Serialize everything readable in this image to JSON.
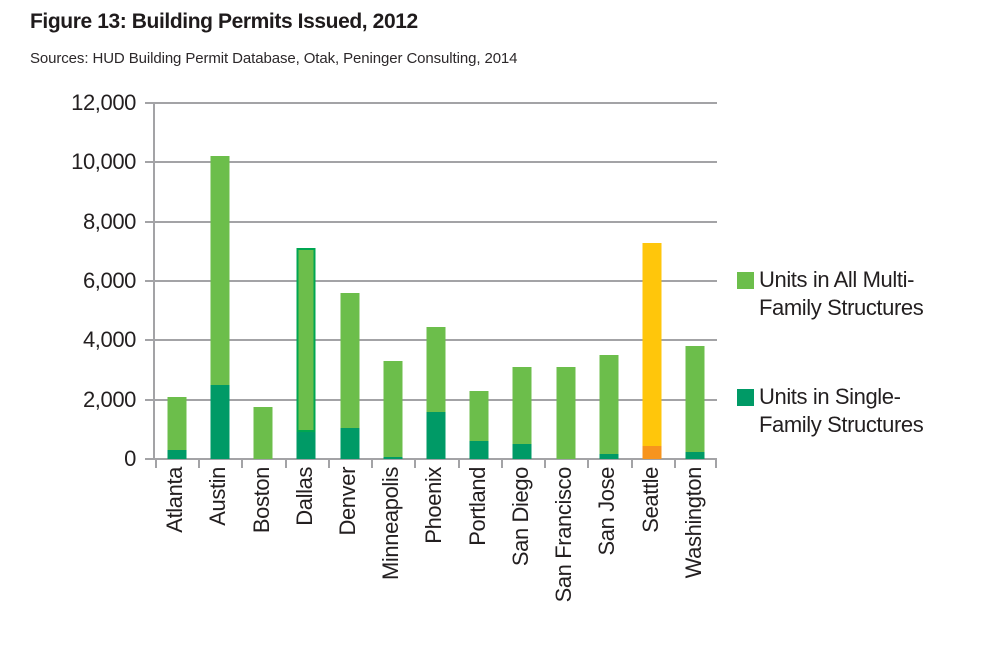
{
  "title": "Figure 13: Building Permits Issued, 2012",
  "source_line": "Sources: HUD Building Permit Database, Otak, Peninger Consulting, 2014",
  "colors": {
    "multi_family": "#6cbe4b",
    "single_family": "#009a66",
    "seattle_multi_highlight": "#ffc60b",
    "seattle_single_highlight": "#f7941e",
    "dallas_outline": "#00a651",
    "grid": "#a3a3a6",
    "text": "#231f20"
  },
  "legend": [
    {
      "lines": [
        "Units in All Multi-",
        "Family Structures"
      ],
      "color": "#6cbe4b",
      "key": "multi-family"
    },
    {
      "lines": [
        "Units in Single-",
        "Family Structures"
      ],
      "color": "#009a66",
      "key": "single-family"
    }
  ],
  "chart_data": {
    "type": "bar",
    "stacked": true,
    "title": "Figure 13: Building Permits Issued, 2012",
    "xlabel": "",
    "ylabel": "",
    "ylim": [
      0,
      12000
    ],
    "ytick_step": 2000,
    "ytick_labels": [
      "0",
      "2,000",
      "4,000",
      "6,000",
      "8,000",
      "10,000",
      "12,000"
    ],
    "grid": true,
    "legend_position": "right",
    "categories": [
      "Atlanta",
      "Austin",
      "Boston",
      "Dallas",
      "Denver",
      "Minneapolis",
      "Phoenix",
      "Portland",
      "San Diego",
      "San Francisco",
      "San Jose",
      "Seattle",
      "Washington"
    ],
    "series": [
      {
        "name": "Units in Single-Family Structures",
        "color": "#009a66",
        "values": [
          300,
          2500,
          0,
          900,
          1050,
          75,
          1600,
          625,
          500,
          0,
          175,
          450,
          225
        ]
      },
      {
        "name": "Units in All Multi-Family Structures",
        "color": "#6cbe4b",
        "values": [
          1800,
          7700,
          1750,
          6200,
          4550,
          3225,
          2850,
          1675,
          2600,
          3100,
          3325,
          6850,
          3575
        ]
      }
    ],
    "totals": [
      2100,
      10200,
      1750,
      7100,
      5600,
      3300,
      4450,
      2300,
      3100,
      3100,
      3500,
      7300,
      3800
    ],
    "highlights": [
      {
        "category": "Dallas",
        "type": "outline",
        "outline_color": "#00a651"
      },
      {
        "category": "Seattle",
        "type": "recolor",
        "multi_color": "#ffc60b",
        "single_color": "#f7941e"
      }
    ]
  }
}
